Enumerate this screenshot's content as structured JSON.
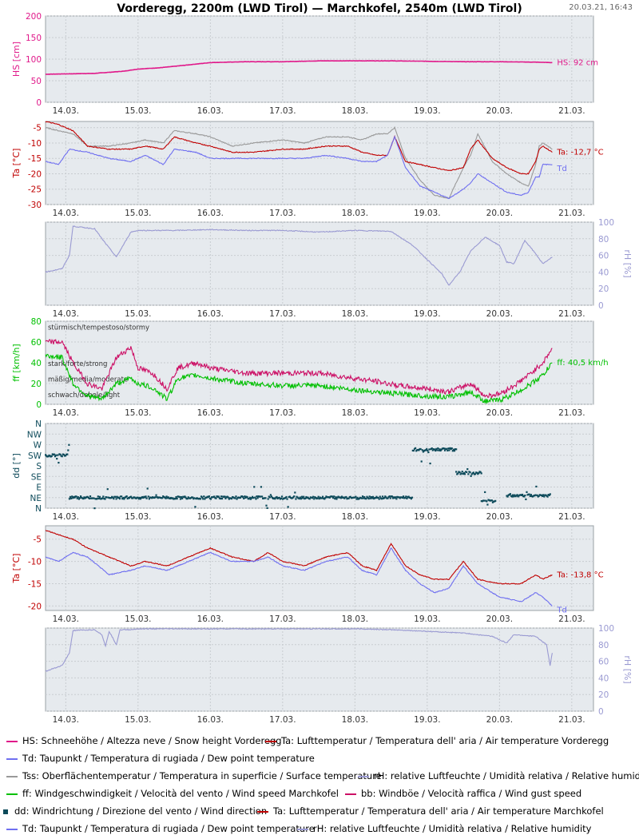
{
  "header": {
    "title": "Vorderegg, 2200m (LWD Tirol) — Marchkofel, 2540m (LWD Tirol)",
    "timestamp": "20.03.21, 16:43"
  },
  "x_tick_labels": [
    "14.03.",
    "15.03.",
    "16.03.",
    "17.03.",
    "18.03.",
    "19.03.",
    "20.03.",
    "21.03."
  ],
  "colors": {
    "hs": "#e0198a",
    "ta": "#c00000",
    "td": "#6f6ff0",
    "tss": "#999999",
    "rh": "#9a9ad2",
    "ff": "#00c000",
    "bb": "#cc1066",
    "dd": "#0d4a5a",
    "grid": "#c8ccd0",
    "plot_bg": "#e6eaee"
  },
  "chart_data": [
    {
      "type": "line",
      "id": "hs",
      "ylabel": "HS [cm]",
      "ylim": [
        0,
        200
      ],
      "yticks": [
        "0",
        "50",
        "100",
        "150",
        "200"
      ],
      "x_unit": "days since 14.03. 00:00",
      "xlim": [
        -0.28,
        7.3
      ],
      "series": [
        {
          "key": "hs",
          "x": [
            -0.28,
            0.4,
            0.8,
            1.0,
            1.3,
            1.6,
            2.0,
            2.5,
            3.0,
            3.5,
            4.0,
            4.5,
            5.0,
            5.5,
            6.0,
            6.5,
            6.73
          ],
          "values": [
            65,
            67,
            72,
            77,
            80,
            85,
            92,
            94,
            94,
            96,
            96,
            96,
            95,
            94,
            94,
            93,
            92
          ]
        }
      ],
      "end_labels": [
        {
          "key": "hs",
          "text": "HS: 92 cm"
        }
      ]
    },
    {
      "type": "line",
      "id": "temp-vorderegg",
      "ylabel": "Ta [°C]",
      "ylim": [
        -30,
        -3
      ],
      "yticks": [
        "-30",
        "-25",
        "-20",
        "-15",
        "-10",
        "-5"
      ],
      "xlim": [
        -0.28,
        7.3
      ],
      "series": [
        {
          "key": "tss",
          "x": [
            -0.28,
            -0.1,
            0.1,
            0.3,
            0.6,
            0.9,
            1.1,
            1.35,
            1.5,
            1.8,
            2.0,
            2.3,
            2.6,
            3.0,
            3.3,
            3.6,
            3.9,
            4.1,
            4.3,
            4.45,
            4.55,
            4.7,
            4.9,
            5.1,
            5.3,
            5.5,
            5.6,
            5.7,
            5.9,
            6.1,
            6.3,
            6.4,
            6.5,
            6.55,
            6.6,
            6.73
          ],
          "values": [
            -5,
            -6,
            -7,
            -11,
            -11,
            -10,
            -9,
            -10,
            -6,
            -7,
            -8,
            -11,
            -10,
            -9,
            -10,
            -8,
            -8,
            -9,
            -7,
            -7,
            -5,
            -15,
            -22,
            -27,
            -28,
            -18,
            -14,
            -7,
            -16,
            -20,
            -23,
            -24,
            -17,
            -11,
            -10,
            -12
          ]
        },
        {
          "key": "ta",
          "x": [
            -0.28,
            -0.1,
            0.1,
            0.3,
            0.6,
            0.9,
            1.1,
            1.35,
            1.5,
            1.8,
            2.0,
            2.3,
            2.6,
            3.0,
            3.3,
            3.6,
            3.9,
            4.1,
            4.3,
            4.45,
            4.55,
            4.7,
            4.9,
            5.1,
            5.3,
            5.5,
            5.6,
            5.7,
            5.9,
            6.1,
            6.3,
            6.4,
            6.5,
            6.55,
            6.6,
            6.73
          ],
          "values": [
            -3,
            -4,
            -6,
            -11,
            -12,
            -12,
            -11,
            -12,
            -8,
            -10,
            -11,
            -13,
            -13,
            -12,
            -12,
            -11,
            -11,
            -13,
            -14,
            -14,
            -8,
            -16,
            -17,
            -18,
            -19,
            -18,
            -12,
            -9,
            -15,
            -18,
            -20,
            -20,
            -16,
            -12,
            -11,
            -13
          ]
        },
        {
          "key": "td",
          "x": [
            -0.28,
            -0.1,
            0.05,
            0.3,
            0.6,
            0.9,
            1.1,
            1.35,
            1.5,
            1.8,
            2.0,
            2.3,
            2.6,
            3.0,
            3.3,
            3.6,
            3.9,
            4.1,
            4.3,
            4.45,
            4.55,
            4.7,
            4.9,
            5.1,
            5.3,
            5.5,
            5.6,
            5.7,
            5.9,
            6.1,
            6.3,
            6.4,
            6.5,
            6.55,
            6.6,
            6.73
          ],
          "values": [
            -16,
            -17,
            -12,
            -13,
            -15,
            -16,
            -14,
            -17,
            -12,
            -13,
            -15,
            -15,
            -15,
            -15,
            -15,
            -14,
            -15,
            -16,
            -16,
            -14,
            -8,
            -18,
            -24,
            -26,
            -28,
            -25,
            -23,
            -20,
            -23,
            -26,
            -27,
            -26,
            -21,
            -21,
            -17,
            -17
          ]
        }
      ],
      "end_labels": [
        {
          "key": "ta",
          "text": "Ta: -12,7 °C"
        },
        {
          "key": "td",
          "text": "Td"
        }
      ]
    },
    {
      "type": "line",
      "id": "rh-vorderegg",
      "ylabel": "rH [%]",
      "yaxis": "right",
      "ylim": [
        0,
        100
      ],
      "yticks": [
        "0",
        "20",
        "40",
        "60",
        "80",
        "100"
      ],
      "xlim": [
        -0.28,
        7.3
      ],
      "series": [
        {
          "key": "rh",
          "x": [
            -0.28,
            -0.05,
            0.05,
            0.1,
            0.4,
            0.5,
            0.7,
            0.9,
            1.0,
            1.5,
            2.0,
            2.5,
            3.0,
            3.5,
            4.0,
            4.5,
            4.8,
            5.0,
            5.2,
            5.3,
            5.45,
            5.6,
            5.8,
            6.0,
            6.1,
            6.2,
            6.35,
            6.5,
            6.6,
            6.73
          ],
          "values": [
            40,
            44,
            60,
            95,
            92,
            80,
            58,
            88,
            90,
            90,
            91,
            90,
            90,
            88,
            90,
            89,
            72,
            55,
            38,
            24,
            40,
            65,
            82,
            72,
            52,
            50,
            78,
            62,
            50,
            58
          ]
        }
      ]
    },
    {
      "type": "line",
      "id": "wind-speed",
      "ylabel": "ff [km/h]",
      "ylim": [
        0,
        80
      ],
      "yticks": [
        "0",
        "20",
        "40",
        "60",
        "80"
      ],
      "xlim": [
        -0.28,
        7.3
      ],
      "bands": [
        {
          "label": "stürmisch/tempestoso/stormy",
          "at": 75
        },
        {
          "label": "stark/forte/strong",
          "at": 40
        },
        {
          "label": "mäßig/media/moderate",
          "at": 25
        },
        {
          "label": "schwach/debole/light",
          "at": 10
        }
      ],
      "series": [
        {
          "key": "bb",
          "x": [
            -0.28,
            -0.05,
            0.1,
            0.3,
            0.5,
            0.7,
            0.9,
            1.0,
            1.2,
            1.4,
            1.55,
            1.8,
            2.0,
            2.5,
            3.0,
            3.5,
            4.0,
            4.3,
            4.6,
            5.0,
            5.3,
            5.6,
            5.8,
            6.0,
            6.2,
            6.4,
            6.6,
            6.73
          ],
          "values": [
            60,
            60,
            40,
            20,
            15,
            45,
            55,
            35,
            30,
            15,
            35,
            40,
            35,
            30,
            30,
            30,
            25,
            22,
            18,
            15,
            12,
            20,
            8,
            10,
            18,
            28,
            40,
            54
          ]
        },
        {
          "key": "ff",
          "x": [
            -0.28,
            -0.05,
            0.1,
            0.3,
            0.5,
            0.7,
            0.9,
            1.0,
            1.2,
            1.4,
            1.55,
            1.8,
            2.0,
            2.5,
            3.0,
            3.5,
            4.0,
            4.3,
            4.6,
            5.0,
            5.3,
            5.6,
            5.8,
            6.0,
            6.2,
            6.4,
            6.6,
            6.73
          ],
          "values": [
            47,
            45,
            20,
            8,
            5,
            20,
            25,
            20,
            16,
            5,
            25,
            28,
            25,
            20,
            18,
            18,
            14,
            12,
            10,
            8,
            7,
            12,
            3,
            4,
            10,
            18,
            28,
            40
          ]
        }
      ],
      "end_labels": [
        {
          "key": "ff",
          "text": "ff: 40,5 km/h"
        }
      ]
    },
    {
      "type": "scatter",
      "id": "wind-direction",
      "ylabel": "dd [°]",
      "ylim": [
        0,
        360
      ],
      "yticks": [
        "N",
        "NE",
        "E",
        "SE",
        "S",
        "SW",
        "W",
        "NW",
        "N"
      ],
      "xlim": [
        -0.28,
        7.3
      ],
      "series": [
        {
          "key": "dd",
          "segments": [
            {
              "x0": -0.28,
              "x1": 0.05,
              "y": 225
            },
            {
              "x0": 0.05,
              "x1": 4.8,
              "y": 45
            },
            {
              "x0": 4.8,
              "x1": 5.4,
              "y": 250
            },
            {
              "x0": 5.4,
              "x1": 5.75,
              "y": 150
            },
            {
              "x0": 5.75,
              "x1": 5.95,
              "y": 30
            },
            {
              "x0": 6.1,
              "x1": 6.7,
              "y": 55
            }
          ]
        }
      ]
    },
    {
      "type": "line",
      "id": "temp-marchkofel",
      "ylabel": "Ta [°C]",
      "ylim": [
        -21,
        -2
      ],
      "yticks": [
        "-20",
        "-15",
        "-10",
        "-5"
      ],
      "xlim": [
        -0.28,
        7.3
      ],
      "series": [
        {
          "key": "ta",
          "x": [
            -0.28,
            -0.1,
            0.1,
            0.3,
            0.6,
            0.9,
            1.1,
            1.4,
            1.7,
            2.0,
            2.3,
            2.6,
            2.8,
            3.0,
            3.3,
            3.6,
            3.9,
            4.1,
            4.3,
            4.5,
            4.7,
            4.9,
            5.1,
            5.3,
            5.5,
            5.7,
            6.0,
            6.3,
            6.5,
            6.6,
            6.73
          ],
          "values": [
            -3,
            -4,
            -5,
            -7,
            -9,
            -11,
            -10,
            -11,
            -9,
            -7,
            -9,
            -10,
            -8,
            -10,
            -11,
            -9,
            -8,
            -11,
            -12,
            -6,
            -11,
            -13,
            -14,
            -14,
            -10,
            -14,
            -15,
            -15,
            -13,
            -14,
            -13
          ]
        },
        {
          "key": "td",
          "x": [
            -0.28,
            -0.1,
            0.1,
            0.3,
            0.6,
            0.9,
            1.1,
            1.4,
            1.7,
            2.0,
            2.3,
            2.6,
            2.8,
            3.0,
            3.3,
            3.6,
            3.9,
            4.1,
            4.3,
            4.5,
            4.7,
            4.9,
            5.1,
            5.3,
            5.5,
            5.7,
            6.0,
            6.3,
            6.5,
            6.6,
            6.73
          ],
          "values": [
            -9,
            -10,
            -8,
            -9,
            -13,
            -12,
            -11,
            -12,
            -10,
            -8,
            -10,
            -10,
            -9,
            -11,
            -12,
            -10,
            -9,
            -12,
            -13,
            -7,
            -12,
            -15,
            -17,
            -16,
            -11,
            -15,
            -18,
            -19,
            -17,
            -18,
            -20
          ]
        }
      ],
      "end_labels": [
        {
          "key": "ta",
          "text": "Ta: -13,8 °C"
        },
        {
          "key": "td",
          "text": "Td"
        }
      ]
    },
    {
      "type": "line",
      "id": "rh-marchkofel",
      "ylabel": "rH [%]",
      "yaxis": "right",
      "ylim": [
        0,
        100
      ],
      "yticks": [
        "0",
        "20",
        "40",
        "60",
        "80",
        "100"
      ],
      "xlim": [
        -0.28,
        7.3
      ],
      "series": [
        {
          "key": "rh",
          "x": [
            -0.28,
            -0.05,
            0.05,
            0.1,
            0.4,
            0.5,
            0.55,
            0.6,
            0.7,
            0.75,
            0.9,
            1.0,
            2.0,
            3.0,
            4.0,
            4.5,
            5.0,
            5.5,
            5.9,
            6.1,
            6.2,
            6.5,
            6.65,
            6.7,
            6.73
          ],
          "values": [
            48,
            55,
            70,
            97,
            98,
            92,
            78,
            96,
            80,
            98,
            98,
            99,
            99,
            99,
            99,
            98,
            96,
            94,
            90,
            82,
            92,
            90,
            80,
            55,
            70
          ]
        }
      ]
    }
  ],
  "legend": [
    {
      "key": "hs",
      "kind": "line",
      "text": "HS: Schneehöhe / Altezza neve / Snow height  Vorderegg"
    },
    {
      "key": "ta",
      "kind": "line",
      "text": "Ta: Lufttemperatur / Temperatura dell' aria / Air temperature  Vorderegg"
    },
    {
      "key": "td",
      "kind": "line",
      "text": "Td: Taupunkt / Temperatura di rugiada / Dew point temperature"
    },
    {
      "key": "tss",
      "kind": "line",
      "text": "Tss: Oberflächentemperatur / Temperatura in superficie / Surface temperature"
    },
    {
      "key": "rh",
      "kind": "line",
      "text": "rH: relative Luftfeuchte / Umidità relativa / Relative humidity"
    },
    {
      "key": "ff",
      "kind": "line",
      "text": "ff: Windgeschwindigkeit / Velocità del vento / Wind speed  Marchkofel"
    },
    {
      "key": "bb",
      "kind": "line",
      "text": "bb: Windböe / Velocità raffica / Wind gust speed"
    },
    {
      "key": "dd",
      "kind": "square",
      "text": "dd: Windrichtung / Direzione del vento / Wind direction"
    },
    {
      "key": "ta",
      "kind": "line",
      "text": "Ta: Lufttemperatur / Temperatura dell' aria / Air temperature  Marchkofel"
    },
    {
      "key": "td",
      "kind": "line",
      "text": "Td: Taupunkt / Temperatura di rugiada / Dew point temperature"
    },
    {
      "key": "rh",
      "kind": "line",
      "text": "rH: relative Luftfeuchte / Umidità relativa / Relative humidity"
    }
  ]
}
